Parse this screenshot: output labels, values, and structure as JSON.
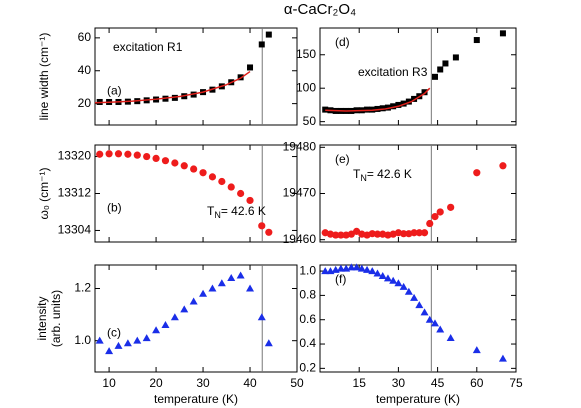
{
  "title": "α-CaCr₂O₄",
  "chart_data": [
    {
      "type": "scatter",
      "panel_label": "(a)",
      "annotation": "excitation R1",
      "y_label": "line width (cm⁻¹)",
      "xlim": [
        7,
        50
      ],
      "xticks": [
        10,
        20,
        30,
        40,
        50
      ],
      "xtick_labels": false,
      "ylim": [
        7,
        66
      ],
      "yticks": [
        20,
        40,
        60
      ],
      "vline": 42.6,
      "series": [
        {
          "style": "marker",
          "marker": "square",
          "color": "#000000",
          "x": [
            8,
            10,
            12,
            14,
            16,
            18,
            20,
            22,
            24,
            26,
            28,
            30,
            32,
            34,
            36,
            38,
            40,
            42.5,
            44
          ],
          "values": [
            21,
            21,
            21,
            21.2,
            21.5,
            22,
            22.5,
            23,
            23.5,
            24.5,
            25.5,
            27,
            28.5,
            30.5,
            33,
            36,
            42,
            56,
            62
          ]
        },
        {
          "style": "line",
          "color": "#e0201b",
          "x": [
            7,
            10,
            15,
            20,
            25,
            30,
            35,
            38,
            40
          ],
          "values": [
            20.5,
            20.8,
            21.5,
            22.7,
            24.3,
            27,
            31.5,
            35.5,
            39.5
          ]
        }
      ]
    },
    {
      "type": "scatter",
      "panel_label": "(d)",
      "annotation": "excitation R3",
      "xlim": [
        0,
        75
      ],
      "xticks": [
        15,
        30,
        45,
        60,
        75
      ],
      "xtick_labels": false,
      "ylim": [
        45,
        190
      ],
      "yticks": [
        50,
        100,
        150
      ],
      "vline": 42.6,
      "series": [
        {
          "style": "marker",
          "marker": "square",
          "color": "#000000",
          "x": [
            2,
            4,
            6,
            8,
            10,
            12,
            14,
            16,
            18,
            20,
            22,
            24,
            26,
            28,
            30,
            32,
            34,
            36,
            38,
            40,
            44,
            46,
            48,
            52,
            60,
            70
          ],
          "values": [
            68,
            67,
            66,
            66,
            66,
            66,
            67,
            67,
            68,
            68,
            69,
            70,
            71,
            73,
            75,
            77,
            80,
            84,
            88,
            94,
            117,
            128,
            137,
            146,
            172,
            182
          ]
        },
        {
          "style": "line",
          "color": "#e0201b",
          "x": [
            2,
            10,
            20,
            25,
            30,
            35,
            40,
            42
          ],
          "values": [
            67,
            66,
            67,
            69,
            73,
            80,
            92,
            100
          ]
        }
      ]
    },
    {
      "type": "scatter",
      "panel_label": "(b)",
      "y_label": "ω₀ (cm⁻¹)",
      "tn_text": {
        "symbol": "T",
        "sub": "N",
        "rest": "= 42.6 K"
      },
      "xlim": [
        7,
        50
      ],
      "xticks": [
        10,
        20,
        30,
        40,
        50
      ],
      "xtick_labels": false,
      "ylim": [
        13301.5,
        13322.5
      ],
      "yticks": [
        13304,
        13312,
        13320
      ],
      "vline": 42.6,
      "series": [
        {
          "style": "marker",
          "marker": "circle",
          "color": "#ee1c1c",
          "x": [
            8,
            10,
            12,
            14,
            16,
            18,
            20,
            22,
            24,
            26,
            28,
            30,
            32,
            34,
            36,
            38,
            40,
            42.5,
            44
          ],
          "values": [
            13320.5,
            13320.6,
            13320.6,
            13320.5,
            13320.3,
            13320,
            13319.6,
            13319.1,
            13318.6,
            13318,
            13317.3,
            13316.5,
            13315.6,
            13314.6,
            13313.4,
            13312,
            13310.5,
            13305,
            13303.6
          ]
        }
      ]
    },
    {
      "type": "scatter",
      "panel_label": "(e)",
      "tn_text": {
        "symbol": "T",
        "sub": "N",
        "rest": "= 42.6 K"
      },
      "xlim": [
        0,
        75
      ],
      "xticks": [
        15,
        30,
        45,
        60,
        75
      ],
      "xtick_labels": false,
      "ylim": [
        19459.5,
        19480.5
      ],
      "yticks": [
        19460,
        19470,
        19480
      ],
      "vline": 42.6,
      "series": [
        {
          "style": "marker",
          "marker": "circle",
          "color": "#ee1c1c",
          "x": [
            2,
            4,
            6,
            8,
            10,
            12,
            14,
            16,
            18,
            20,
            22,
            24,
            26,
            28,
            30,
            32,
            34,
            36,
            38,
            40,
            42,
            44,
            46,
            50,
            60,
            70
          ],
          "values": [
            19461.5,
            19461.2,
            19461,
            19461,
            19461,
            19461.2,
            19461.8,
            19461.2,
            19461,
            19461.3,
            19461.2,
            19461.2,
            19461,
            19461.2,
            19461.5,
            19461.3,
            19461.3,
            19461.5,
            19461.5,
            19461.5,
            19463.5,
            19465,
            19466,
            19467,
            19474.5,
            19476
          ]
        }
      ]
    },
    {
      "type": "scatter",
      "panel_label": "(c)",
      "y_label": [
        "intensity",
        "(arb. units)"
      ],
      "x_label": "temperature (K)",
      "xlim": [
        7,
        50
      ],
      "xticks": [
        10,
        20,
        30,
        40,
        50
      ],
      "xtick_labels": true,
      "ylim": [
        0.88,
        1.29
      ],
      "yticks": [
        1.0,
        1.2
      ],
      "ytick_labels": [
        "1.0",
        "1.2"
      ],
      "vline": 42.6,
      "series": [
        {
          "style": "marker",
          "marker": "triangle",
          "color": "#1a2ee8",
          "x": [
            8,
            10,
            12,
            14,
            16,
            18,
            20,
            22,
            24,
            26,
            28,
            30,
            32,
            34,
            36,
            38,
            40,
            42.5,
            44
          ],
          "values": [
            1.0,
            0.96,
            0.98,
            0.99,
            1.0,
            1.01,
            1.04,
            1.06,
            1.09,
            1.12,
            1.15,
            1.18,
            1.2,
            1.22,
            1.24,
            1.25,
            1.2,
            1.09,
            0.99
          ]
        }
      ]
    },
    {
      "type": "scatter",
      "panel_label": "(f)",
      "x_label": "temperature (K)",
      "xlim": [
        0,
        75
      ],
      "xticks": [
        15,
        30,
        45,
        60,
        75
      ],
      "xtick_labels": true,
      "ylim": [
        0.17,
        1.05
      ],
      "yticks": [
        0.2,
        0.4,
        0.6,
        0.8,
        1.0
      ],
      "ytick_labels": [
        "0.2",
        "0.4",
        "0.6",
        "0.8",
        "1.0"
      ],
      "vline": 42.6,
      "series": [
        {
          "style": "marker",
          "marker": "triangle",
          "color": "#1a2ee8",
          "x": [
            2,
            4,
            6,
            8,
            10,
            12,
            14,
            16,
            18,
            20,
            22,
            24,
            26,
            28,
            30,
            32,
            34,
            36,
            38,
            40,
            42,
            44,
            46,
            50,
            60,
            70
          ],
          "values": [
            1.0,
            1.0,
            1.01,
            1.02,
            1.02,
            1.03,
            1.03,
            1.02,
            1.01,
            1.0,
            0.98,
            0.96,
            0.94,
            0.92,
            0.9,
            0.87,
            0.83,
            0.78,
            0.72,
            0.66,
            0.6,
            0.57,
            0.52,
            0.45,
            0.35,
            0.28
          ]
        }
      ]
    }
  ]
}
